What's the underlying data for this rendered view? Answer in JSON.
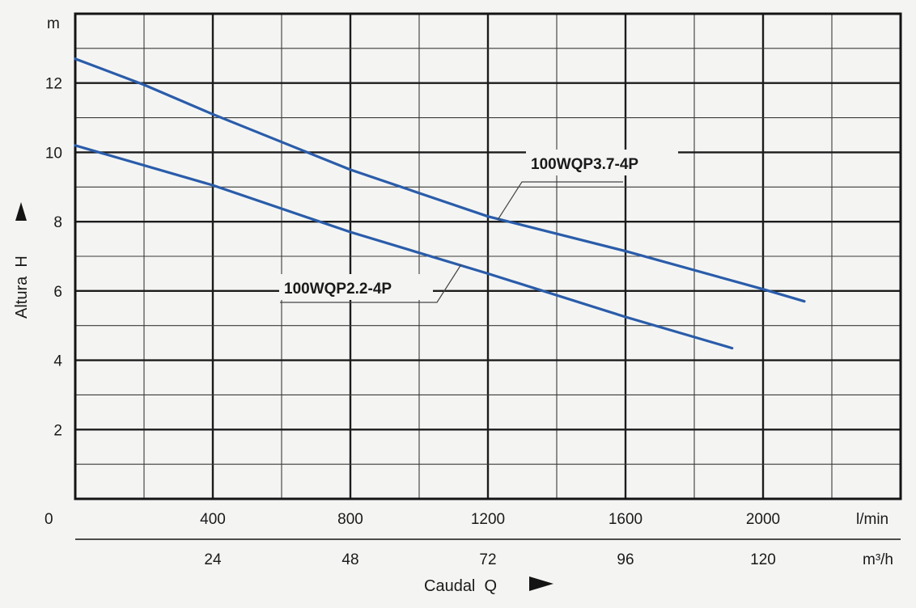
{
  "chart_data": {
    "type": "line",
    "title": "",
    "ylabel": "Altura  H",
    "xlabel": "Caudal  Q",
    "y_unit": "m",
    "x_unit_primary": "l/min",
    "x_unit_secondary": "m³/h",
    "origin_label": "0",
    "xlim": [
      0,
      2400
    ],
    "ylim": [
      0,
      14
    ],
    "grid": true,
    "x_ticks_primary": [
      {
        "value": 400,
        "label": "400"
      },
      {
        "value": 800,
        "label": "800"
      },
      {
        "value": 1200,
        "label": "1200"
      },
      {
        "value": 1600,
        "label": "1600"
      },
      {
        "value": 2000,
        "label": "2000"
      }
    ],
    "x_ticks_secondary": [
      {
        "value": 400,
        "label": "24"
      },
      {
        "value": 800,
        "label": "48"
      },
      {
        "value": 1200,
        "label": "72"
      },
      {
        "value": 1600,
        "label": "96"
      },
      {
        "value": 2000,
        "label": "120"
      }
    ],
    "y_ticks": [
      {
        "value": 2,
        "label": "2"
      },
      {
        "value": 4,
        "label": "4"
      },
      {
        "value": 6,
        "label": "6"
      },
      {
        "value": 8,
        "label": "8"
      },
      {
        "value": 10,
        "label": "10"
      },
      {
        "value": 12,
        "label": "12"
      }
    ],
    "series": [
      {
        "name": "100WQP3.7-4P",
        "color": "#2a5caa",
        "x": [
          0,
          200,
          400,
          800,
          1200,
          1600,
          2000,
          2120
        ],
        "y": [
          12.7,
          11.95,
          11.1,
          9.5,
          8.15,
          7.15,
          6.05,
          5.7
        ]
      },
      {
        "name": "100WQP2.2-4P",
        "color": "#2a5caa",
        "x": [
          0,
          400,
          800,
          1200,
          1600,
          1910
        ],
        "y": [
          10.2,
          9.05,
          7.7,
          6.5,
          5.25,
          4.35
        ]
      }
    ]
  }
}
